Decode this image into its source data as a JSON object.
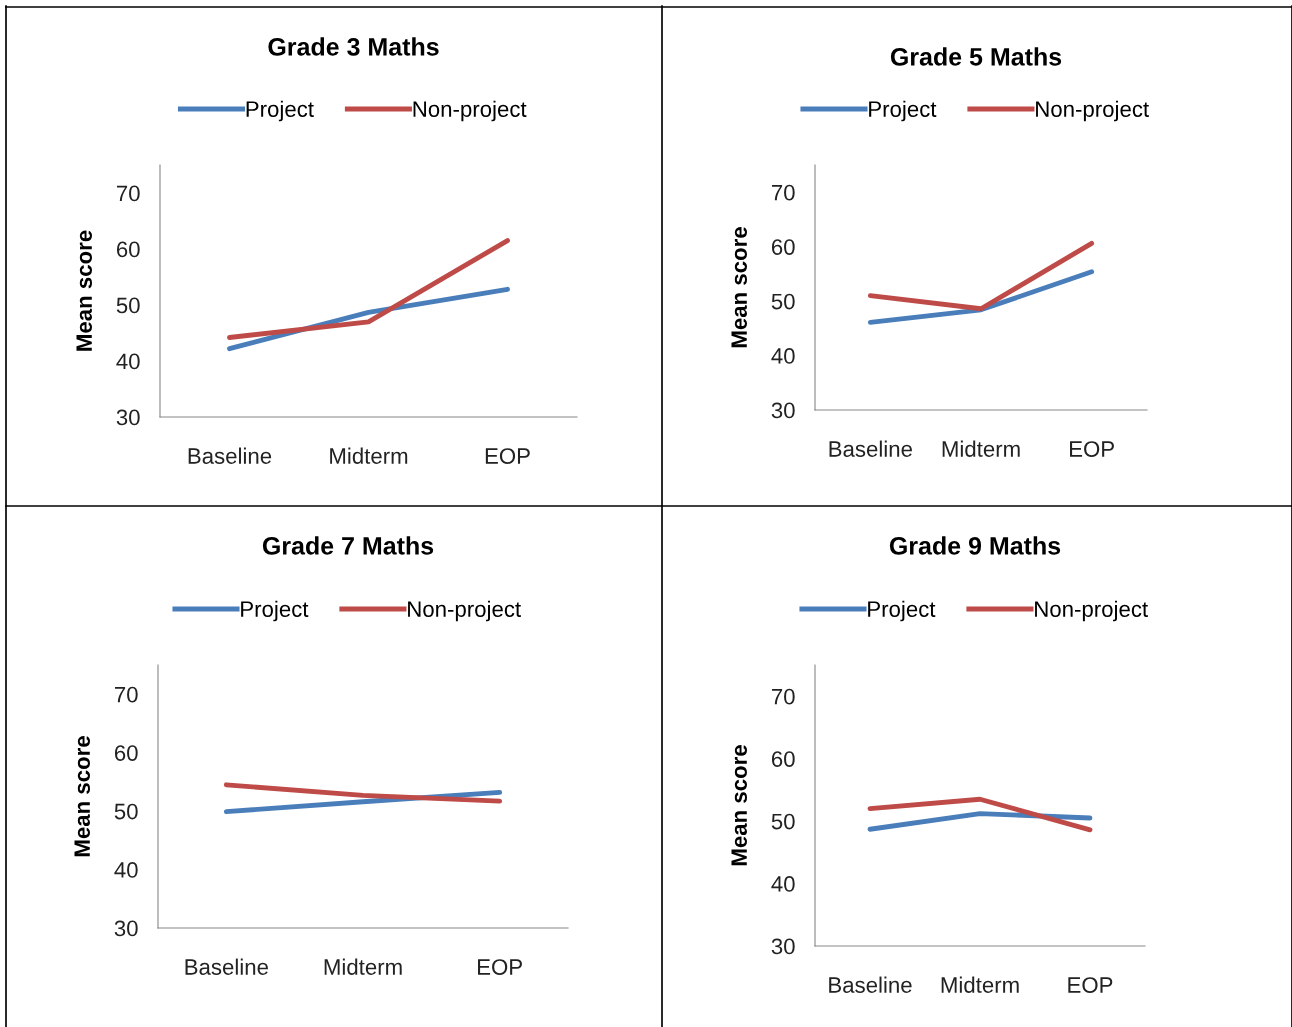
{
  "chart_data": [
    {
      "type": "line",
      "title": "Grade 3 Maths",
      "ylabel": "Mean score",
      "categories": [
        "Baseline",
        "Midterm",
        "EOP"
      ],
      "ylim": [
        30,
        75
      ],
      "yticks": [
        30,
        40,
        50,
        60,
        70
      ],
      "legend": "top",
      "grid": false,
      "series": [
        {
          "name": "Project",
          "color": "#4a7ebb",
          "values": [
            42.2,
            48.7,
            52.8
          ]
        },
        {
          "name": "Non-project",
          "color": "#be4b48",
          "values": [
            44.2,
            47.0,
            61.5
          ]
        }
      ]
    },
    {
      "type": "line",
      "title": "Grade 5 Maths",
      "ylabel": "Mean score",
      "categories": [
        "Baseline",
        "Midterm",
        "EOP"
      ],
      "ylim": [
        30,
        75
      ],
      "yticks": [
        30,
        40,
        50,
        60,
        70
      ],
      "legend": "top",
      "grid": false,
      "series": [
        {
          "name": "Project",
          "color": "#4a7ebb",
          "values": [
            46.1,
            48.4,
            55.4
          ]
        },
        {
          "name": "Non-project",
          "color": "#be4b48",
          "values": [
            51.0,
            48.6,
            60.6
          ]
        }
      ]
    },
    {
      "type": "line",
      "title": "Grade 7 Maths",
      "ylabel": "Mean score",
      "categories": [
        "Baseline",
        "Midterm",
        "EOP"
      ],
      "ylim": [
        30,
        75
      ],
      "yticks": [
        30,
        40,
        50,
        60,
        70
      ],
      "legend": "top",
      "grid": false,
      "series": [
        {
          "name": "Project",
          "color": "#4a7ebb",
          "values": [
            49.9,
            51.6,
            53.2
          ]
        },
        {
          "name": "Non-project",
          "color": "#be4b48",
          "values": [
            54.5,
            52.7,
            51.7
          ]
        }
      ]
    },
    {
      "type": "line",
      "title": "Grade 9 Maths",
      "ylabel": "Mean score",
      "categories": [
        "Baseline",
        "Midterm",
        "EOP"
      ],
      "ylim": [
        30,
        75
      ],
      "yticks": [
        30,
        40,
        50,
        60,
        70
      ],
      "legend": "top",
      "grid": false,
      "series": [
        {
          "name": "Project",
          "color": "#4a7ebb",
          "values": [
            48.7,
            51.2,
            50.5
          ]
        },
        {
          "name": "Non-project",
          "color": "#be4b48",
          "values": [
            52.0,
            53.5,
            48.6
          ]
        }
      ]
    }
  ]
}
